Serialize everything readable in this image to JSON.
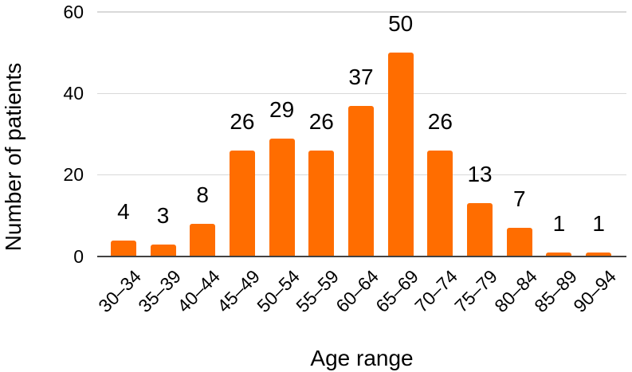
{
  "chart_data": {
    "type": "bar",
    "title": "",
    "xlabel": "Age range",
    "ylabel": "Number of patients",
    "categories": [
      "30–34",
      "35–39",
      "40–44",
      "45–49",
      "50–54",
      "55–59",
      "60–64",
      "65–69",
      "70–74",
      "75–79",
      "80–84",
      "85–89",
      "90–94"
    ],
    "values": [
      4,
      3,
      8,
      26,
      29,
      26,
      37,
      50,
      26,
      13,
      7,
      1,
      1
    ],
    "ylim": [
      0,
      60
    ],
    "yticks": [
      0,
      20,
      40,
      60
    ],
    "grid": true,
    "legend": "none",
    "bar_color": "#FF6D00",
    "gridline_color": "#D9D9D9",
    "axis_line_color": "#424242",
    "text_color": "#000000"
  }
}
